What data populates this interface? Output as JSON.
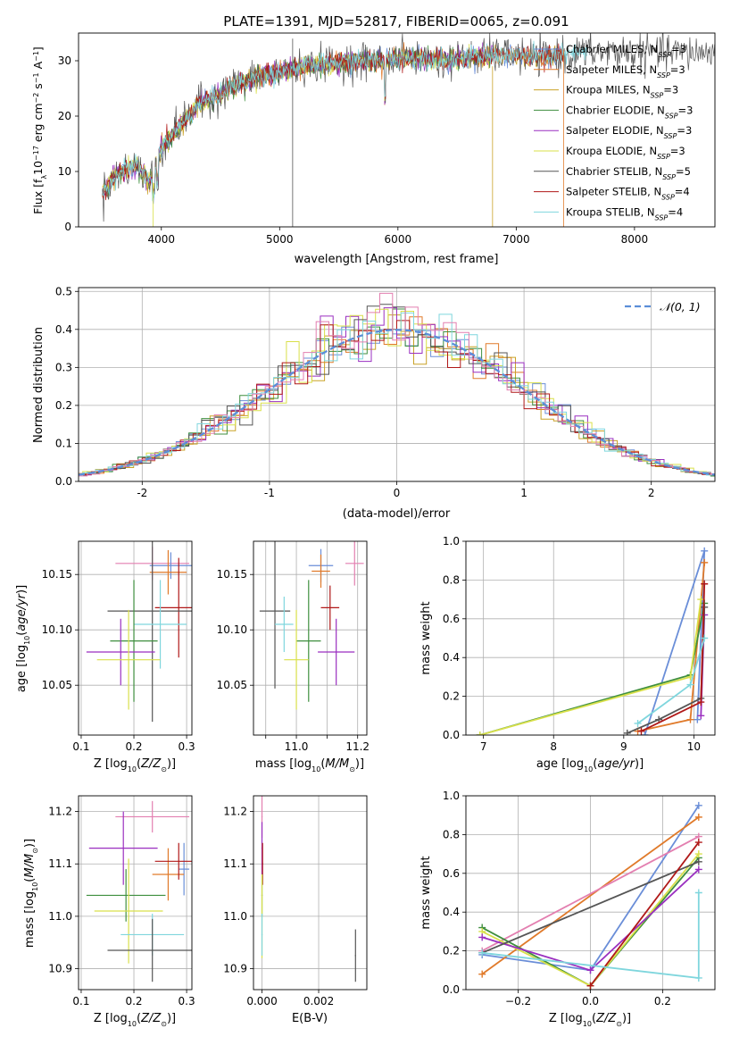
{
  "figure": {
    "title": "PLATE=1391, MJD=52817, FIBERID=0065, z=0.091"
  },
  "colors": {
    "chab_miles": "#6a8ed8",
    "salp_miles": "#e07a2a",
    "krou_miles": "#c9a227",
    "chab_elodie": "#3f8f3f",
    "salp_elodie": "#9a2fc0",
    "krou_elodie": "#d9e04a",
    "chab_stelib": "#555555",
    "salp_stelib": "#b01818",
    "krou_stelib": "#7fd6dd",
    "pink": "#e37fb0",
    "gauss": "#5b8ed8"
  },
  "chart_data": [
    {
      "id": "spectrum",
      "type": "line",
      "title": "PLATE=1391, MJD=52817, FIBERID=0065, z=0.091",
      "xlabel": "wavelength [Angstrom, rest frame]",
      "ylabel": "Flux [f_λ 10^-17 erg cm^-2 s^-1 A^-1]",
      "xlim": [
        3300,
        8680
      ],
      "ylim": [
        0,
        35
      ],
      "xticks": [
        4000,
        5000,
        6000,
        7000,
        8000
      ],
      "yticks": [
        0,
        10,
        20,
        30
      ],
      "grid": false,
      "legend_position": "right",
      "continuum": {
        "x": [
          3500,
          3600,
          3700,
          3800,
          3900,
          4000,
          4100,
          4200,
          4300,
          4400,
          4500,
          4600,
          4700,
          4800,
          4900,
          5000,
          5200,
          5400,
          5600,
          5800,
          6000,
          6200,
          6400,
          6600,
          6800,
          7000,
          7200,
          7400,
          7600
        ],
        "y": [
          6,
          9,
          10.5,
          11,
          8,
          14,
          17,
          19,
          22,
          23,
          24,
          25.5,
          26,
          27,
          27.5,
          28,
          29,
          29.5,
          30,
          30,
          30.5,
          30.5,
          30,
          30.5,
          31,
          31,
          30.5,
          31,
          31.5
        ]
      },
      "series": [
        {
          "name": "Chabrier MILES, N_SSP=3",
          "color_key": "chab_miles",
          "xmax": 7400
        },
        {
          "name": "Salpeter MILES, N_SSP=3",
          "color_key": "salp_miles",
          "xmax": 7400
        },
        {
          "name": "Kroupa MILES, N_SSP=3",
          "color_key": "krou_miles",
          "xmax": 7400
        },
        {
          "name": "Chabrier ELODIE, N_SSP=3",
          "color_key": "chab_elodie",
          "xmax": 6800
        },
        {
          "name": "Salpeter ELODIE, N_SSP=3",
          "color_key": "salp_elodie",
          "xmax": 6800
        },
        {
          "name": "Kroupa ELODIE, N_SSP=3",
          "color_key": "krou_elodie",
          "xmax": 6800
        },
        {
          "name": "Chabrier STELIB, N_SSP=5",
          "color_key": "chab_stelib",
          "xmax": 8680
        },
        {
          "name": "Salpeter STELIB, N_SSP=4",
          "color_key": "salp_stelib",
          "xmax": 7400
        },
        {
          "name": "Kroupa STELIB, N_SSP=4",
          "color_key": "krou_stelib",
          "xmax": 7600
        }
      ]
    },
    {
      "id": "residuals",
      "type": "line",
      "xlabel": "(data-model)/error",
      "ylabel": "Normed distribution",
      "xlim": [
        -2.5,
        2.5
      ],
      "ylim": [
        0,
        0.51
      ],
      "xticks": [
        -2,
        -1,
        0,
        1,
        2
      ],
      "yticks": [
        0.0,
        0.1,
        0.2,
        0.3,
        0.4,
        0.5
      ],
      "grid": true,
      "legend": "𝒩(0, 1)",
      "legend_position": "top-right",
      "bin_width": 0.1
    },
    {
      "id": "z_vs_age",
      "type": "scatter",
      "xlabel": "Z [log10(Z/Z☉)]",
      "ylabel": "age [log10(age/yr)]",
      "xlim": [
        0.095,
        0.31
      ],
      "ylim": [
        10.005,
        10.18
      ],
      "xticks": [
        0.1,
        0.2,
        0.3
      ],
      "yticks": [
        10.05,
        10.1,
        10.15
      ],
      "grid": true,
      "points": [
        {
          "color_key": "pink",
          "x": 0.235,
          "y": 10.16,
          "xerr": 0.07,
          "yerr": 0.015
        },
        {
          "color_key": "chab_miles",
          "x": 0.27,
          "y": 10.158,
          "xerr": 0.04,
          "yerr": 0.012
        },
        {
          "color_key": "salp_miles",
          "x": 0.265,
          "y": 10.152,
          "xerr": 0.035,
          "yerr": 0.02
        },
        {
          "color_key": "salp_stelib",
          "x": 0.285,
          "y": 10.12,
          "xerr": 0.045,
          "yerr": 0.045
        },
        {
          "color_key": "chab_stelib",
          "x": 0.235,
          "y": 10.117,
          "xerr": 0.085,
          "yerr": 0.1
        },
        {
          "color_key": "krou_stelib",
          "x": 0.25,
          "y": 10.105,
          "xerr": 0.05,
          "yerr": 0.04
        },
        {
          "color_key": "chab_elodie",
          "x": 0.2,
          "y": 10.09,
          "xerr": 0.045,
          "yerr": 0.055
        },
        {
          "color_key": "salp_elodie",
          "x": 0.175,
          "y": 10.08,
          "xerr": 0.065,
          "yerr": 0.03
        },
        {
          "color_key": "krou_elodie",
          "x": 0.19,
          "y": 10.073,
          "xerr": 0.06,
          "yerr": 0.045
        }
      ]
    },
    {
      "id": "mass_vs_age",
      "type": "scatter",
      "xlabel": "mass [log10(M/M☉)]",
      "ylabel": "",
      "xlim": [
        10.86,
        11.23
      ],
      "ylim": [
        10.005,
        10.18
      ],
      "xticks": [
        11.0,
        11.2
      ],
      "extra_xticks": [
        10.9,
        11.1
      ],
      "yticks": [
        10.05,
        10.1,
        10.15
      ],
      "grid": true,
      "points": [
        {
          "color_key": "pink",
          "x": 11.19,
          "y": 10.16,
          "xerr": 0.03,
          "yerr": 0.02
        },
        {
          "color_key": "chab_miles",
          "x": 11.08,
          "y": 10.158,
          "xerr": 0.04,
          "yerr": 0.015
        },
        {
          "color_key": "salp_miles",
          "x": 11.08,
          "y": 10.153,
          "xerr": 0.03,
          "yerr": 0.015
        },
        {
          "color_key": "salp_stelib",
          "x": 11.11,
          "y": 10.12,
          "xerr": 0.03,
          "yerr": 0.02
        },
        {
          "color_key": "chab_stelib",
          "x": 10.93,
          "y": 10.117,
          "xerr": 0.05,
          "yerr": 0.07
        },
        {
          "color_key": "krou_stelib",
          "x": 10.96,
          "y": 10.105,
          "xerr": 0.03,
          "yerr": 0.025
        },
        {
          "color_key": "chab_elodie",
          "x": 11.04,
          "y": 10.09,
          "xerr": 0.04,
          "yerr": 0.055
        },
        {
          "color_key": "salp_elodie",
          "x": 11.13,
          "y": 10.08,
          "xerr": 0.06,
          "yerr": 0.03
        },
        {
          "color_key": "krou_elodie",
          "x": 11.0,
          "y": 10.073,
          "xerr": 0.04,
          "yerr": 0.045
        }
      ]
    },
    {
      "id": "age_vs_massweight",
      "type": "line",
      "xlabel": "age [log10(age/yr)]",
      "ylabel": "mass weight",
      "xlim": [
        6.75,
        10.3
      ],
      "ylim": [
        0,
        1.0
      ],
      "xticks": [
        7,
        8,
        9,
        10
      ],
      "yticks": [
        0.0,
        0.2,
        0.4,
        0.6,
        0.8,
        1.0
      ],
      "grid": true,
      "series": [
        {
          "color_key": "chab_miles",
          "x": [
            9.3,
            10.15,
            10.05
          ],
          "y": [
            0.0,
            0.95,
            0.08
          ]
        },
        {
          "color_key": "salp_miles",
          "x": [
            9.2,
            9.95,
            10.15
          ],
          "y": [
            0.02,
            0.08,
            0.89
          ]
        },
        {
          "color_key": "chab_elodie",
          "x": [
            6.95,
            9.95,
            10.15
          ],
          "y": [
            0.0,
            0.31,
            0.68
          ]
        },
        {
          "color_key": "salp_elodie",
          "x": [
            10.1,
            10.15
          ],
          "y": [
            0.1,
            0.62
          ]
        },
        {
          "color_key": "krou_elodie",
          "x": [
            6.95,
            9.95,
            10.1
          ],
          "y": [
            0.0,
            0.3,
            0.7
          ]
        },
        {
          "color_key": "chab_stelib",
          "x": [
            9.05,
            9.5,
            10.1,
            10.15
          ],
          "y": [
            0.01,
            0.08,
            0.19,
            0.66
          ]
        },
        {
          "color_key": "salp_stelib",
          "x": [
            9.25,
            10.1,
            10.15
          ],
          "y": [
            0.02,
            0.17,
            0.78
          ]
        },
        {
          "color_key": "krou_stelib",
          "x": [
            9.2,
            9.95,
            10.15
          ],
          "y": [
            0.06,
            0.26,
            0.5
          ]
        }
      ]
    },
    {
      "id": "z_vs_mass",
      "type": "scatter",
      "xlabel": "Z [log10(Z/Z☉)]",
      "ylabel": "mass [log10(M/M☉)]",
      "xlim": [
        0.095,
        0.31
      ],
      "ylim": [
        10.86,
        11.23
      ],
      "xticks": [
        0.1,
        0.2,
        0.3
      ],
      "yticks": [
        10.9,
        11.0,
        11.1,
        11.2
      ],
      "grid": true,
      "points": [
        {
          "color_key": "pink",
          "x": 0.235,
          "y": 11.19,
          "xerr": 0.07,
          "yerr": 0.03
        },
        {
          "color_key": "chab_miles",
          "x": 0.295,
          "y": 11.09,
          "xerr": 0.01,
          "yerr": 0.05
        },
        {
          "color_key": "salp_miles",
          "x": 0.265,
          "y": 11.08,
          "xerr": 0.03,
          "yerr": 0.05
        },
        {
          "color_key": "salp_stelib",
          "x": 0.285,
          "y": 11.105,
          "xerr": 0.045,
          "yerr": 0.035
        },
        {
          "color_key": "salp_elodie",
          "x": 0.18,
          "y": 11.13,
          "xerr": 0.065,
          "yerr": 0.07
        },
        {
          "color_key": "chab_elodie",
          "x": 0.185,
          "y": 11.04,
          "xerr": 0.075,
          "yerr": 0.05
        },
        {
          "color_key": "krou_elodie",
          "x": 0.19,
          "y": 11.01,
          "xerr": 0.065,
          "yerr": 0.1
        },
        {
          "color_key": "krou_stelib",
          "x": 0.235,
          "y": 10.965,
          "xerr": 0.06,
          "yerr": 0.04
        },
        {
          "color_key": "chab_stelib",
          "x": 0.235,
          "y": 10.935,
          "xerr": 0.085,
          "yerr": 0.06
        }
      ]
    },
    {
      "id": "ebv_vs_mass",
      "type": "scatter",
      "xlabel": "E(B-V)",
      "ylabel": "",
      "xlim": [
        -0.0003,
        0.0037
      ],
      "ylim": [
        10.86,
        11.23
      ],
      "xticks": [
        0.0,
        0.002
      ],
      "yticks": [
        10.9,
        11.0,
        11.1,
        11.2
      ],
      "grid": true,
      "points": [
        {
          "color_key": "pink",
          "x": 0.0,
          "y": 11.19,
          "xerr": 2e-05,
          "yerr": 0.04
        },
        {
          "color_key": "salp_elodie",
          "x": 0.0,
          "y": 11.13,
          "xerr": 2e-05,
          "yerr": 0.05
        },
        {
          "color_key": "salp_stelib",
          "x": 2e-05,
          "y": 11.1,
          "xerr": 2e-05,
          "yerr": 0.04
        },
        {
          "color_key": "chab_elodie",
          "x": 0.0,
          "y": 11.04,
          "xerr": 2e-05,
          "yerr": 0.04
        },
        {
          "color_key": "krou_elodie",
          "x": 0.0,
          "y": 11.0,
          "xerr": 2e-05,
          "yerr": 0.08
        },
        {
          "color_key": "krou_stelib",
          "x": 0.0,
          "y": 10.965,
          "xerr": 2e-05,
          "yerr": 0.04
        },
        {
          "color_key": "chab_stelib",
          "x": 0.0033,
          "y": 10.925,
          "xerr": 2e-05,
          "yerr": 0.05
        }
      ]
    },
    {
      "id": "z_vs_massweight",
      "type": "line",
      "xlabel": "Z [log10(Z/Z☉)]",
      "ylabel": "mass weight",
      "xlim": [
        -0.345,
        0.345
      ],
      "ylim": [
        0,
        1.0
      ],
      "xticks": [
        -0.2,
        0.0,
        0.2
      ],
      "yticks": [
        0.0,
        0.2,
        0.4,
        0.6,
        0.8,
        1.0
      ],
      "grid": true,
      "series": [
        {
          "color_key": "chab_miles",
          "x": [
            -0.3,
            0.0,
            0.3
          ],
          "y": [
            0.18,
            0.1,
            0.95
          ]
        },
        {
          "color_key": "salp_miles",
          "x": [
            -0.3,
            0.3
          ],
          "y": [
            0.08,
            0.89
          ]
        },
        {
          "color_key": "pink",
          "x": [
            -0.3,
            0.3
          ],
          "y": [
            0.2,
            0.79
          ]
        },
        {
          "color_key": "chab_elodie",
          "x": [
            -0.3,
            0.0,
            0.3
          ],
          "y": [
            0.32,
            0.02,
            0.68
          ]
        },
        {
          "color_key": "krou_elodie",
          "x": [
            -0.3,
            0.0,
            0.3
          ],
          "y": [
            0.3,
            0.02,
            0.7
          ]
        },
        {
          "color_key": "salp_elodie",
          "x": [
            -0.3,
            0.0,
            0.3
          ],
          "y": [
            0.27,
            0.1,
            0.62
          ]
        },
        {
          "color_key": "chab_stelib",
          "x": [
            -0.3,
            0.3
          ],
          "y": [
            0.19,
            0.66
          ]
        },
        {
          "color_key": "salp_stelib",
          "x": [
            0.0,
            0.3
          ],
          "y": [
            0.02,
            0.76
          ]
        },
        {
          "color_key": "krou_stelib",
          "x": [
            -0.3,
            0.3,
            0.3
          ],
          "y": [
            0.19,
            0.06,
            0.5
          ]
        }
      ]
    }
  ]
}
